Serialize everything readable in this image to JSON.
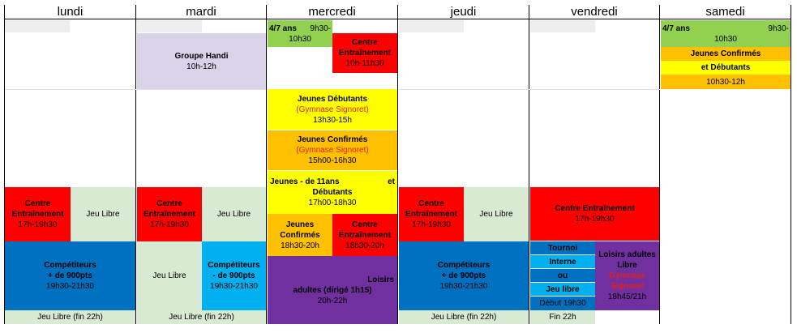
{
  "days": [
    "lundi",
    "mardi",
    "mercredi",
    "jeudi",
    "vendredi",
    "samedi"
  ],
  "colors": {
    "red": "#ff0000",
    "green_light": "#d9ead3",
    "blue": "#0070c0",
    "cyan": "#00b0f0",
    "purple": "#7030a0",
    "yellow": "#ffff00",
    "orange": "#ffc000",
    "green": "#92d050",
    "lavender": "#d9d2e9"
  },
  "lundi": {
    "ce_title": "Centre Entraînement",
    "ce_time": "17h-19h30",
    "jeu_libre": "Jeu Libre",
    "comp_title": "Compétiteurs",
    "comp_sub": "+ de 900pts",
    "comp_time": "19h30-21h30",
    "last": "Jeu Libre (fin 22h)"
  },
  "mardi": {
    "handi_title": "Groupe Handi",
    "handi_time": "10h-12h",
    "ce_title": "Centre Entraînement",
    "ce_time": "17h-19h30",
    "jeu_libre": "Jeu Libre",
    "jeu_libre2": "Jeu Libre",
    "comp_title": "Compétiteurs",
    "comp_sub": "- de 900pts",
    "comp_time": "19h30-21h30",
    "last": "Jeu Libre (fin 22h)"
  },
  "mercredi": {
    "a47_label": "4/7 ans",
    "a47_time1": "9h30-",
    "a47_time2": "10h30",
    "ce_title": "Centre Entraînement",
    "ce_time": "10h-11h30",
    "deb_title": "Jeunes Débutants",
    "deb_place": "(Gymnase Signoret)",
    "deb_time": "13h30-15h",
    "conf_title": "Jeunes Confirmés",
    "conf_place": "(Gymnase Signoret)",
    "conf_time": "15h00-16h30",
    "m11_title": "Jeunes - de 11ans",
    "m11_et": "et",
    "m11_sub": "Débutants",
    "m11_time": "17h00-18h30",
    "jc_title1": "Jeunes",
    "jc_title2": "Confirmés",
    "jc_time": "18h30-20h",
    "ce2_title": "Centre Entraînement",
    "ce2_time": "18h30-20h",
    "loisirs_title": "Loisirs",
    "loisirs_sub": "adultes (dirigé 1h15)",
    "loisirs_time": "20h-22h"
  },
  "jeudi": {
    "ce_title": "Centre Entraînement",
    "ce_time": "17h-19h30",
    "jeu_libre": "Jeu Libre",
    "comp_title": "Compétiteurs",
    "comp_sub": "+ de 900pts",
    "comp_time": "19h30-21h30",
    "last": "Jeu Libre (fin 22h)"
  },
  "vendredi": {
    "ce_title": "Centre Entraînement",
    "ce_time": "17h-19h30",
    "tournoi": "Tournoi",
    "interne": "Interne",
    "ou": "ou",
    "jeu_libre": "Jeu libre",
    "debut": "Début 19h30",
    "loisirs_title": "Loisirs adultes",
    "loisirs_sub": "Libre",
    "loisirs_place1": "Gymnase",
    "loisirs_place2": "Signoret",
    "loisirs_time": "18h45/21h",
    "last": "Fin 22h"
  },
  "samedi": {
    "a47_label": "4/7 ans",
    "a47_time1": "9h30-",
    "a47_time2": "10h30",
    "jc_line1": "Jeunes Confirmés",
    "jc_line2": "et Débutants",
    "jc_time": "10h30-12h"
  }
}
